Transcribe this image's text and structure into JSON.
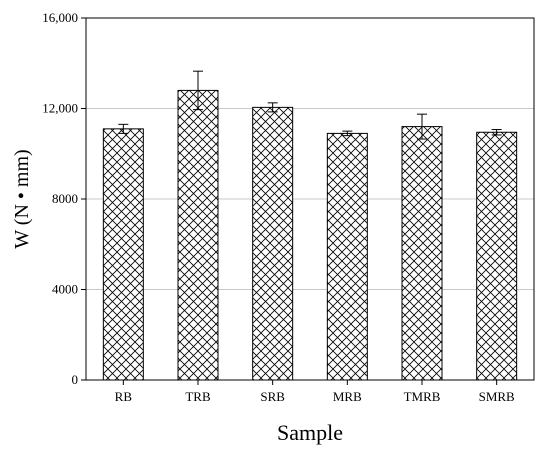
{
  "chart_data": {
    "type": "bar",
    "categories": [
      "RB",
      "TRB",
      "SRB",
      "MRB",
      "TMRB",
      "SMRB"
    ],
    "values": [
      11100,
      12800,
      12050,
      10900,
      11200,
      10950
    ],
    "errors": [
      200,
      850,
      200,
      100,
      550,
      120
    ],
    "title": "",
    "xlabel": "Sample",
    "ylabel": "W (N • mm)",
    "ylim": [
      0,
      16000
    ],
    "yticks": [
      0,
      4000,
      8000,
      12000,
      16000
    ],
    "ytick_labels": [
      "0",
      "4000",
      "8000",
      "12,000",
      "16,000"
    ],
    "grid": "horizontal",
    "bar_pattern": "crosshatch",
    "colors": {
      "bar_fill": "#ffffff",
      "hatch": "#000000",
      "grid": "#c8c8c8",
      "axis": "#000000"
    }
  }
}
